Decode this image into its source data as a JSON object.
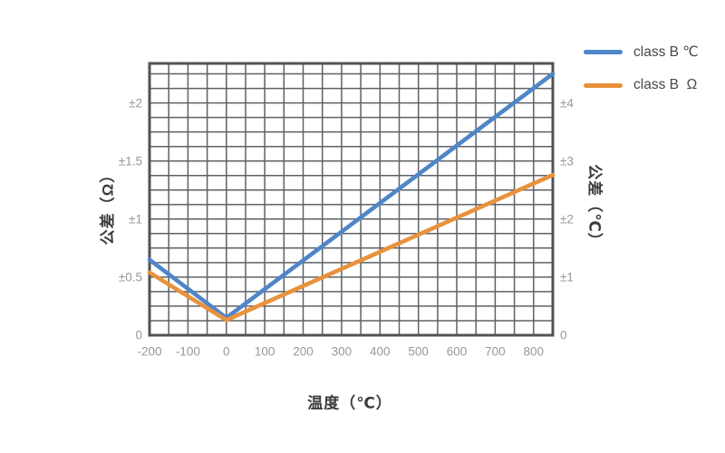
{
  "chart_data": {
    "type": "line",
    "title": "",
    "xlabel": "温度（℃）",
    "ylabel_left": "公差（Ω）",
    "ylabel_right": "公差（℃）",
    "x": {
      "min": -200,
      "max": 850,
      "minor_step": 50,
      "tick_labels": [
        "-200",
        "-100",
        "0",
        "100",
        "200",
        "300",
        "400",
        "500",
        "600",
        "700",
        "800"
      ]
    },
    "left_axis": {
      "min": 0,
      "max": 2.34,
      "minor_step": 0.125,
      "ticks": [
        {
          "v": 0,
          "label": "0"
        },
        {
          "v": 0.5,
          "label": "±0.5"
        },
        {
          "v": 1,
          "label": "±1"
        },
        {
          "v": 1.5,
          "label": "±1.5"
        },
        {
          "v": 2,
          "label": "±2"
        }
      ]
    },
    "right_axis": {
      "min": 0,
      "max": 4.68,
      "minor_step": 0.25,
      "ticks": [
        {
          "v": 0,
          "label": "0"
        },
        {
          "v": 1,
          "label": "±1"
        },
        {
          "v": 2,
          "label": "±2"
        },
        {
          "v": 3,
          "label": "±3"
        },
        {
          "v": 4,
          "label": "±4"
        }
      ]
    },
    "series": [
      {
        "name": "class B ℃",
        "axis": "right",
        "color": "#4e86c8",
        "points": [
          [
            -200,
            1.3
          ],
          [
            0,
            0.3
          ],
          [
            850,
            4.5
          ]
        ]
      },
      {
        "name": "class B  Ω",
        "axis": "left",
        "color": "#e8923c",
        "points": [
          [
            -200,
            0.54
          ],
          [
            0,
            0.13
          ],
          [
            850,
            1.38
          ]
        ]
      }
    ],
    "grid": {
      "on": true,
      "line_color": "#5e6165",
      "border_color": "#4f5256",
      "background": "#ffffff"
    },
    "legend_position": "top-right"
  }
}
